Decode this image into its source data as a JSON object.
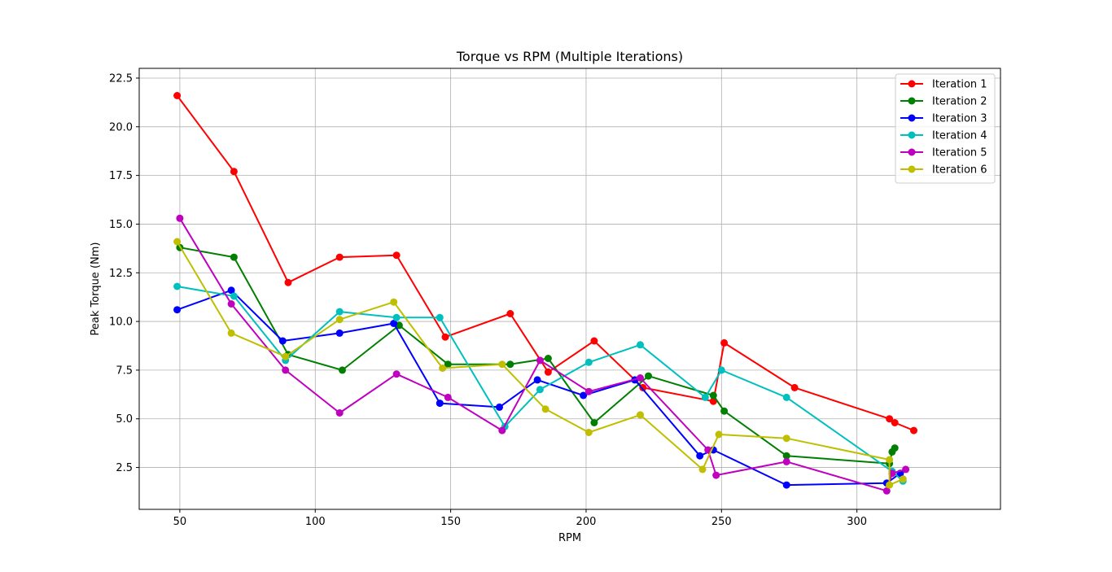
{
  "chart_data": {
    "type": "line",
    "title": "Torque vs RPM (Multiple Iterations)",
    "xlabel": "RPM",
    "ylabel": "Peak Torque (Nm)",
    "xlim": [
      35,
      353
    ],
    "ylim": [
      0.35,
      23.0
    ],
    "xticks": [
      50,
      100,
      150,
      200,
      250,
      300
    ],
    "yticks": [
      2.5,
      5.0,
      7.5,
      10.0,
      12.5,
      15.0,
      17.5,
      20.0,
      22.5
    ],
    "grid": true,
    "legend_position": "top-right",
    "series": [
      {
        "name": "Iteration 1",
        "color": "#ff0000",
        "points": [
          [
            49,
            21.6
          ],
          [
            70,
            17.7
          ],
          [
            90,
            12.0
          ],
          [
            109,
            13.3
          ],
          [
            130,
            13.4
          ],
          [
            148,
            9.2
          ],
          [
            172,
            10.4
          ],
          [
            186,
            7.4
          ],
          [
            203,
            9.0
          ],
          [
            221,
            6.6
          ],
          [
            247,
            5.9
          ],
          [
            251,
            8.9
          ],
          [
            277,
            6.6
          ],
          [
            312,
            5.0
          ],
          [
            314,
            4.8
          ],
          [
            321,
            4.4
          ]
        ]
      },
      {
        "name": "Iteration 2",
        "color": "#008000",
        "points": [
          [
            50,
            13.8
          ],
          [
            70,
            13.3
          ],
          [
            90,
            8.3
          ],
          [
            110,
            7.5
          ],
          [
            131,
            9.8
          ],
          [
            149,
            7.8
          ],
          [
            172,
            7.8
          ],
          [
            186,
            8.1
          ],
          [
            203,
            4.8
          ],
          [
            223,
            7.2
          ],
          [
            247,
            6.2
          ],
          [
            251,
            5.4
          ],
          [
            274,
            3.1
          ],
          [
            312,
            2.7
          ],
          [
            313,
            3.3
          ],
          [
            314,
            3.5
          ]
        ]
      },
      {
        "name": "Iteration 3",
        "color": "#0000ff",
        "points": [
          [
            49,
            10.6
          ],
          [
            69,
            11.6
          ],
          [
            88,
            9.0
          ],
          [
            109,
            9.4
          ],
          [
            129,
            9.9
          ],
          [
            146,
            5.8
          ],
          [
            168,
            5.6
          ],
          [
            182,
            7.0
          ],
          [
            199,
            6.2
          ],
          [
            218,
            7.0
          ],
          [
            242,
            3.1
          ],
          [
            247,
            3.4
          ],
          [
            274,
            1.6
          ],
          [
            311,
            1.7
          ],
          [
            316,
            2.2
          ],
          [
            317,
            1.9
          ]
        ]
      },
      {
        "name": "Iteration 4",
        "color": "#00bfbf",
        "points": [
          [
            49,
            11.8
          ],
          [
            70,
            11.3
          ],
          [
            89,
            8.0
          ],
          [
            109,
            10.5
          ],
          [
            130,
            10.2
          ],
          [
            146,
            10.2
          ],
          [
            170,
            4.6
          ],
          [
            183,
            6.5
          ],
          [
            201,
            7.9
          ],
          [
            220,
            8.8
          ],
          [
            244,
            6.1
          ],
          [
            250,
            7.5
          ],
          [
            274,
            6.1
          ],
          [
            313,
            2.3
          ],
          [
            317,
            1.8
          ]
        ]
      },
      {
        "name": "Iteration 5",
        "color": "#bf00bf",
        "points": [
          [
            50,
            15.3
          ],
          [
            69,
            10.9
          ],
          [
            89,
            7.5
          ],
          [
            109,
            5.3
          ],
          [
            130,
            7.3
          ],
          [
            149,
            6.1
          ],
          [
            169,
            4.4
          ],
          [
            183,
            8.0
          ],
          [
            201,
            6.4
          ],
          [
            220,
            7.1
          ],
          [
            245,
            3.4
          ],
          [
            248,
            2.1
          ],
          [
            274,
            2.8
          ],
          [
            311,
            1.3
          ],
          [
            313,
            2.2
          ],
          [
            318,
            2.4
          ]
        ]
      },
      {
        "name": "Iteration 6",
        "color": "#bfbf00",
        "points": [
          [
            49,
            14.1
          ],
          [
            69,
            9.4
          ],
          [
            89,
            8.2
          ],
          [
            109,
            10.1
          ],
          [
            129,
            11.0
          ],
          [
            147,
            7.6
          ],
          [
            169,
            7.8
          ],
          [
            185,
            5.5
          ],
          [
            201,
            4.3
          ],
          [
            220,
            5.2
          ],
          [
            243,
            2.4
          ],
          [
            249,
            4.2
          ],
          [
            274,
            4.0
          ],
          [
            312,
            2.9
          ],
          [
            312,
            1.6
          ],
          [
            317,
            1.9
          ]
        ]
      }
    ]
  }
}
